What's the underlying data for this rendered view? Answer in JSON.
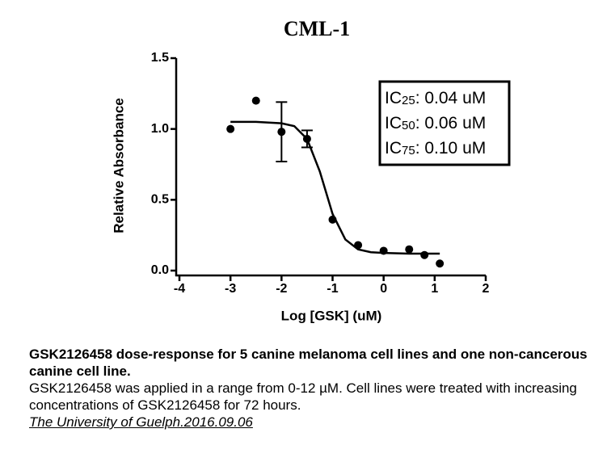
{
  "chart_data": {
    "type": "scatter",
    "title": "CML-1",
    "x_label": "Log [GSK] (uM)",
    "y_label": "Relative Absorbance",
    "x": [
      -3,
      -2.5,
      -2,
      -1.5,
      -1,
      -0.5,
      0,
      0.5,
      0.8,
      1.1
    ],
    "values": [
      1.0,
      1.2,
      0.98,
      0.93,
      0.36,
      0.18,
      0.14,
      0.15,
      0.11,
      0.05
    ],
    "errors": [
      null,
      null,
      0.21,
      0.06,
      null,
      null,
      null,
      null,
      null,
      null
    ],
    "color": "#000000",
    "fit": {
      "x": [
        -3,
        -2.5,
        -2,
        -1.75,
        -1.5,
        -1.25,
        -1,
        -0.75,
        -0.5,
        -0.25,
        0,
        0.5,
        1.1
      ],
      "values": [
        1.05,
        1.05,
        1.04,
        1.02,
        0.93,
        0.7,
        0.4,
        0.22,
        0.15,
        0.13,
        0.125,
        0.12,
        0.12
      ]
    },
    "xlim": [
      -4,
      2
    ],
    "xticks": [
      -4,
      -3,
      -2,
      -1,
      0,
      1,
      2
    ],
    "ylim": [
      0,
      1.5
    ],
    "yticks": [
      {
        "value": 0,
        "label": "0.0"
      },
      {
        "value": 0.5,
        "label": "0.5"
      },
      {
        "value": 1,
        "label": "1.0"
      },
      {
        "value": 1.5,
        "label": "1.5"
      }
    ],
    "annotations": [
      {
        "prefix": "IC",
        "sub": "25",
        "text": ": 0.04 uM"
      },
      {
        "prefix": "IC",
        "sub": "50",
        "text": ": 0.06 uM"
      },
      {
        "prefix": "IC",
        "sub": "75",
        "text": ": 0.10 uM"
      }
    ]
  },
  "caption": {
    "heading": "GSK2126458 dose-response for 5 canine melanoma cell lines and one non-cancerous canine cell line.",
    "body": "GSK2126458 was applied in a range from 0-12 µM. Cell lines were treated with increasing concentrations of GSK2126458 for 72 hours.",
    "source": "The University of Guelph.2016.09.06"
  }
}
